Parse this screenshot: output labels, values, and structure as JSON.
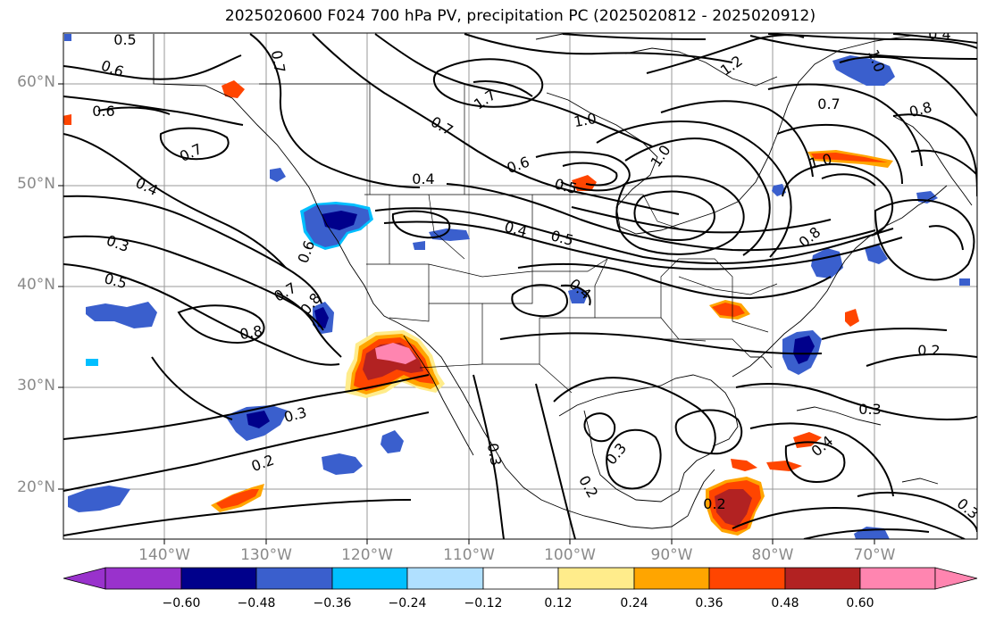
{
  "title": "2025020600 F024 700 hPa PV, precipitation PC (2025020812 - 2025020912)",
  "latitude_labels": [
    "60°N",
    "50°N",
    "40°N",
    "30°N",
    "20°N"
  ],
  "longitude_labels": [
    "140°W",
    "130°W",
    "120°W",
    "110°W",
    "100°W",
    "90°W",
    "80°W",
    "70°W"
  ],
  "contour_labels": [
    "0.5",
    "0.6",
    "0.6",
    "0.7",
    "0.4",
    "0.3",
    "0.5",
    "0.6",
    "0.7",
    "0.8",
    "0.8",
    "0.3",
    "0.2",
    "0.7",
    "0.4",
    "1.7",
    "0.7",
    "1.0",
    "1.2",
    "0.6",
    "0.5",
    "0.4",
    "0.5",
    "1.0",
    "1.0",
    "0.4",
    "0.3",
    "0.3",
    "0.2",
    "0.7",
    "0.8",
    "1.0",
    "0.8",
    "0.2",
    "0.3",
    "0.4",
    "0.3",
    "0.2",
    "0.4"
  ],
  "colorbar": {
    "ticks": [
      "−0.60",
      "−0.48",
      "−0.36",
      "−0.24",
      "−0.12",
      "0.12",
      "0.24",
      "0.36",
      "0.48",
      "0.60"
    ],
    "colors": [
      "#9932cc",
      "#00008b",
      "#3a5fcd",
      "#00bfff",
      "#b0e0ff",
      "#ffffff",
      "#ffec8b",
      "#ffa500",
      "#ff4500",
      "#b22222",
      "#ff85b0"
    ]
  },
  "colors": {
    "negative_blue": "#3a5fcd",
    "dark_blue": "#00008b",
    "red": "#ff4500",
    "dark_red": "#b22222",
    "pink": "#ff85b0",
    "orange": "#ffa500"
  }
}
